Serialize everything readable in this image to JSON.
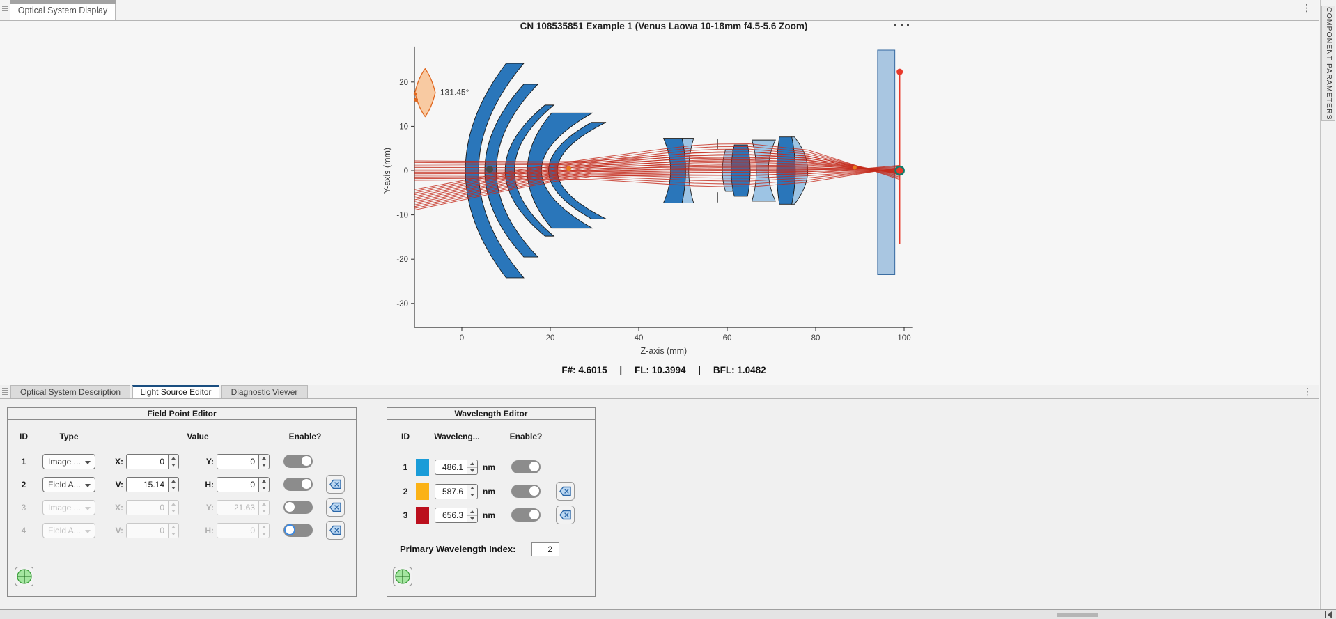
{
  "window": {
    "top_tab": "Optical System Display",
    "right_panel_tab": "COMPONENT PARAMETERS"
  },
  "figure": {
    "title": "CN 108535851 Example 1 (Venus Laowa 10-18mm f4.5-5.6 Zoom)",
    "status": {
      "items": [
        {
          "label": "F#:",
          "value": "4.6015"
        },
        {
          "label": "FL:",
          "value": "10.3994"
        },
        {
          "label": "BFL:",
          "value": "1.0482"
        }
      ],
      "separator": "|"
    }
  },
  "chart_data": {
    "type": "optical-system-layout",
    "title": "CN 108535851 Example 1 (Venus Laowa 10-18mm f4.5-5.6 Zoom)",
    "xlabel": "Z-axis (mm)",
    "ylabel": "Y-axis (mm)",
    "xlim": [
      -10.7,
      102
    ],
    "ylim": [
      -35.4,
      28
    ],
    "xticks": [
      0,
      20,
      40,
      60,
      80,
      100
    ],
    "yticks": [
      -30,
      -20,
      -10,
      0,
      10,
      20
    ],
    "fnum": "4.6015",
    "fl": "10.3994",
    "bfl": "1.0482",
    "colors": {
      "lens_dark": "#2a76ba",
      "lens_light": "#9dc4e4",
      "ray": "#c42a1c",
      "sensor": "#a9c6e1",
      "annotation": "#e0671f",
      "annotation_fill": "#f8caa2",
      "image_line": "#e8392b",
      "axis": "#2b2b2b"
    },
    "fov_annotation": {
      "label": "131.45°",
      "center_z": -8.3,
      "center_y": 17.6,
      "rz": 2.3,
      "ry": 5.4,
      "label_z": -4.9,
      "label_y": 17.7,
      "dots": [
        [
          -10.55,
          17.3,
          2.2
        ],
        [
          -10.35,
          16.0,
          2.8
        ]
      ]
    },
    "lenses": [
      {
        "fill": "dark",
        "ap": 24.2,
        "front": [
          10.0,
          0.8
        ],
        "back": [
          14.0,
          3.8
        ]
      },
      {
        "fill": "dark",
        "ap": 19.5,
        "front": [
          14.0,
          5.2
        ],
        "back": [
          17.2,
          7.8
        ]
      },
      {
        "fill": "dark",
        "ap": 14.8,
        "front": [
          18.8,
          9.8
        ],
        "back": [
          20.8,
          11.9
        ]
      },
      {
        "fill": "dark",
        "ap": 13.0,
        "front": [
          20.3,
          14.8
        ],
        "back": [
          29.5,
          18.0
        ]
      },
      {
        "fill": "dark",
        "ap": 10.9,
        "front": [
          29.3,
          19.6
        ],
        "back": [
          32.6,
          21.6
        ]
      },
      {
        "fill": "dark",
        "ap": 7.3,
        "front": [
          45.6,
          47.2
        ],
        "back": [
          49.8,
          50.6
        ]
      },
      {
        "fill": "light",
        "ap": 7.3,
        "front": [
          49.8,
          50.6
        ],
        "back": [
          52.4,
          51.3
        ]
      },
      {
        "fill": "light",
        "ap": 4.7,
        "front": [
          59.6,
          58.9
        ],
        "back": [
          61.2,
          61.9
        ]
      },
      {
        "fill": "dark",
        "ap": 5.8,
        "front": [
          61.6,
          60.9
        ],
        "back": [
          64.6,
          65.2
        ]
      },
      {
        "fill": "light",
        "ap": 6.9,
        "front": [
          65.6,
          66.6
        ],
        "back": [
          70.9,
          69.3
        ]
      },
      {
        "fill": "dark",
        "ap": 7.6,
        "front": [
          71.8,
          71.2
        ],
        "back": [
          74.6,
          75.4
        ]
      },
      {
        "fill": "light",
        "ap": 7.6,
        "front": [
          74.6,
          75.4
        ],
        "back": [
          75.2,
          78.2
        ]
      }
    ],
    "aperture_stop": {
      "z": 57.8,
      "inner": 4.9,
      "outer": 7.2
    },
    "sensor_block": {
      "z1": 94.0,
      "z2": 97.9,
      "y1": -23.5,
      "y2": 27.2
    },
    "image_plane": {
      "z": 99.0,
      "y1": -16.5,
      "y2": 22.3
    },
    "markers": [
      {
        "z": 6.3,
        "y": 0.3,
        "r": 5,
        "fill": "#4a4a4a"
      },
      {
        "z": 24.2,
        "y": 0.5,
        "r": 3.5,
        "fill": "#e87a1e"
      },
      {
        "z": 88.8,
        "y": 0.7,
        "r": 3,
        "fill": "#e87a1e"
      },
      {
        "z": 99.0,
        "y": 22.3,
        "r": 4.5,
        "fill": "#e8392b"
      },
      {
        "z": 99.0,
        "y": 0,
        "r": 6,
        "fill": "#e8392b",
        "stroke": "#0f7d6c",
        "sw": 2.6
      }
    ],
    "ray_bundles": [
      {
        "n": 13,
        "waypoints": [
          [
            -10.7,
            2.2,
            0
          ],
          [
            13,
            2.05,
            0
          ],
          [
            21,
            1.95,
            0.05
          ],
          [
            29.4,
            2.1,
            0.1
          ],
          [
            45.6,
            3.2,
            0.2
          ],
          [
            52.5,
            3.7,
            0.25
          ],
          [
            58,
            3.85,
            0.25
          ],
          [
            65,
            3.95,
            0.25
          ],
          [
            71.6,
            3.45,
            0.3
          ],
          [
            78.2,
            2.95,
            0.3
          ],
          [
            99,
            -0.8,
            -0.1
          ]
        ]
      },
      {
        "n": 13,
        "waypoints": [
          [
            -10.7,
            2.3,
            -6.6
          ],
          [
            13,
            2.05,
            -1.9
          ],
          [
            21,
            1.95,
            -0.5
          ],
          [
            29.4,
            2.0,
            0.7
          ],
          [
            45.6,
            3.0,
            1.9
          ],
          [
            52.5,
            3.4,
            2.3
          ],
          [
            58,
            3.55,
            2.45
          ],
          [
            65,
            3.6,
            2.45
          ],
          [
            71.6,
            3.15,
            2.2
          ],
          [
            78.2,
            2.7,
            1.95
          ],
          [
            99,
            -1.6,
            -0.4
          ]
        ]
      }
    ]
  },
  "bottom_tabs": [
    {
      "label": "Optical System Description"
    },
    {
      "label": "Light Source Editor"
    },
    {
      "label": "Diagnostic Viewer"
    }
  ],
  "field_point_editor": {
    "title": "Field Point Editor",
    "headers": {
      "id": "ID",
      "type": "Type",
      "value": "Value",
      "enable": "Enable?"
    },
    "rows": [
      {
        "id": "1",
        "type": "Image ...",
        "l1": "X:",
        "v1": "0",
        "l2": "Y:",
        "v2": "0"
      },
      {
        "id": "2",
        "type": "Field A...",
        "l1": "V:",
        "v1": "15.14",
        "l2": "H:",
        "v2": "0"
      },
      {
        "id": "3",
        "type": "Image ...",
        "l1": "X:",
        "v1": "0",
        "l2": "Y:",
        "v2": "21.63"
      },
      {
        "id": "4",
        "type": "Field A...",
        "l1": "V:",
        "v1": "0",
        "l2": "H:",
        "v2": "0"
      }
    ]
  },
  "wavelength_editor": {
    "title": "Wavelength Editor",
    "headers": {
      "id": "ID",
      "wavelength": "Waveleng...",
      "enable": "Enable?"
    },
    "unit": "nm",
    "rows": [
      {
        "id": "1",
        "color": "#1a9cd8",
        "value": "486.1"
      },
      {
        "id": "2",
        "color": "#fbb216",
        "value": "587.6"
      },
      {
        "id": "3",
        "color": "#bb0f1d",
        "value": "656.3"
      }
    ],
    "primary_label": "Primary Wavelength Index:",
    "primary_value": "2"
  }
}
